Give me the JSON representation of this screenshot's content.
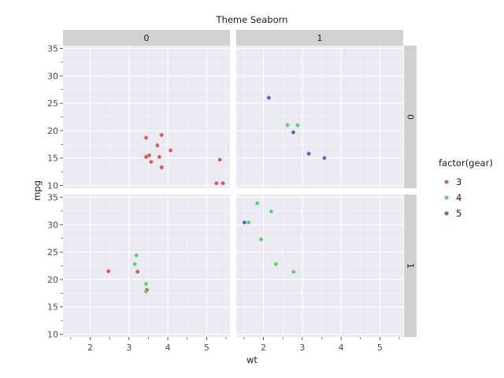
{
  "chart_data": {
    "type": "scatter",
    "title": "Theme Seaborn",
    "xlabel": "wt",
    "ylabel": "mpg",
    "xlim": [
      1.3,
      5.6
    ],
    "ylim": [
      9.5,
      35.5
    ],
    "xticks": [
      2,
      3,
      4,
      5
    ],
    "yticks": [
      10,
      15,
      20,
      25,
      30,
      35
    ],
    "facet_cols": [
      "0",
      "1"
    ],
    "facet_rows": [
      "0",
      "1"
    ],
    "legend": {
      "title": "factor(gear)",
      "placement": "right",
      "entries": [
        {
          "label": "3",
          "color": "#e0584d"
        },
        {
          "label": "4",
          "color": "#57d468"
        },
        {
          "label": "5",
          "color": "#6a5ad6"
        }
      ]
    },
    "series": [
      {
        "gear": "3",
        "row": "0",
        "col": "0",
        "points": [
          [
            3.44,
            18.7
          ],
          [
            3.84,
            19.2
          ],
          [
            3.73,
            17.3
          ],
          [
            4.07,
            16.4
          ],
          [
            3.44,
            15.2
          ],
          [
            3.52,
            15.5
          ],
          [
            3.57,
            14.3
          ],
          [
            3.78,
            15.2
          ],
          [
            3.84,
            13.3
          ],
          [
            5.34,
            14.7
          ],
          [
            5.25,
            10.4
          ],
          [
            5.42,
            10.4
          ]
        ]
      },
      {
        "gear": "3",
        "row": "1",
        "col": "0",
        "points": [
          [
            2.47,
            21.5
          ],
          [
            3.22,
            21.4
          ],
          [
            3.46,
            18.1
          ]
        ]
      },
      {
        "gear": "4",
        "row": "0",
        "col": "1",
        "points": [
          [
            2.62,
            21.0
          ],
          [
            2.88,
            21.0
          ]
        ]
      },
      {
        "gear": "4",
        "row": "1",
        "col": "0",
        "points": [
          [
            3.19,
            24.4
          ],
          [
            3.15,
            22.8
          ],
          [
            3.44,
            19.2
          ],
          [
            3.44,
            17.8
          ]
        ]
      },
      {
        "gear": "4",
        "row": "1",
        "col": "1",
        "points": [
          [
            1.84,
            33.9
          ],
          [
            2.2,
            32.4
          ],
          [
            1.62,
            30.4
          ],
          [
            1.94,
            27.3
          ],
          [
            2.32,
            22.8
          ],
          [
            2.78,
            21.4
          ]
        ]
      },
      {
        "gear": "5",
        "row": "0",
        "col": "1",
        "points": [
          [
            2.14,
            26.0
          ],
          [
            2.77,
            19.7
          ],
          [
            3.17,
            15.8
          ],
          [
            3.57,
            15.0
          ]
        ]
      },
      {
        "gear": "5",
        "row": "1",
        "col": "1",
        "points": [
          [
            1.51,
            30.4
          ]
        ]
      }
    ]
  }
}
